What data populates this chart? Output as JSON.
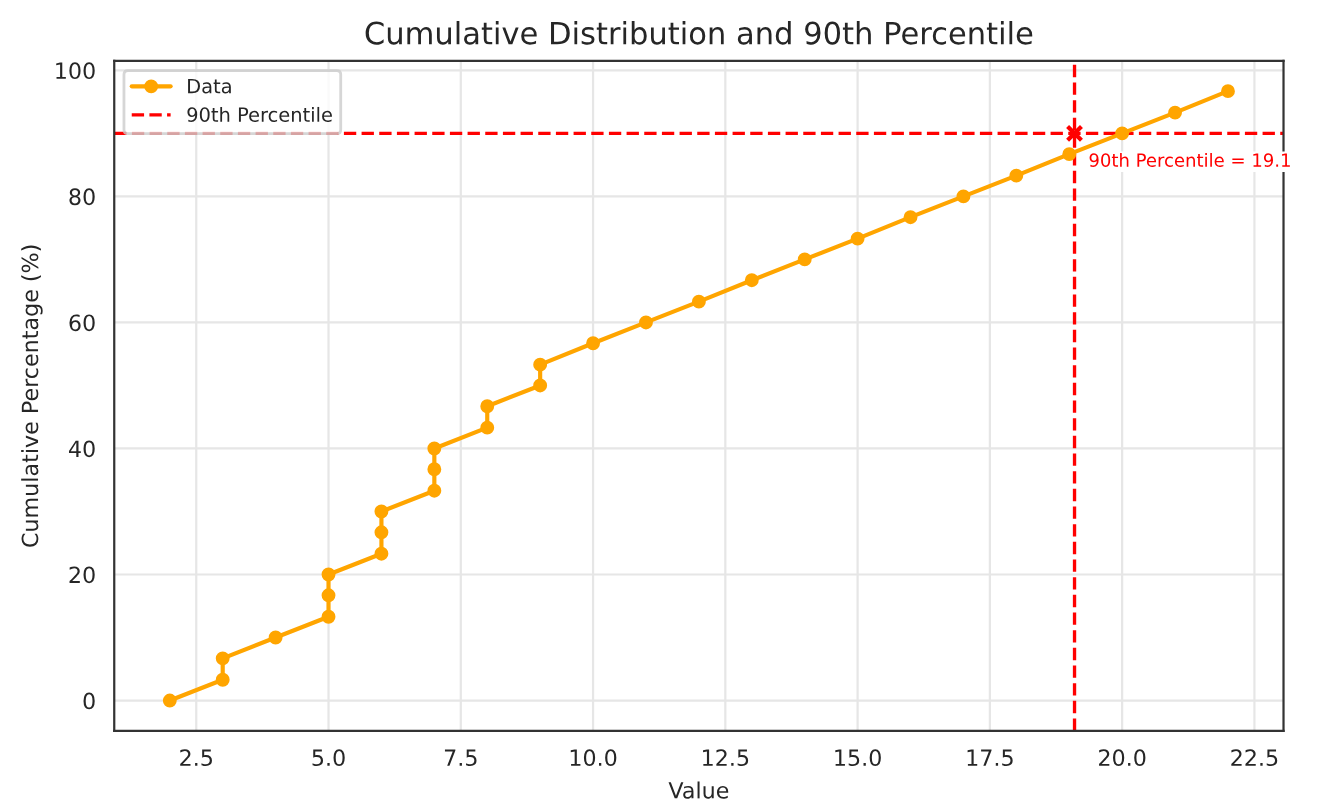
{
  "chart_data": {
    "type": "line",
    "title": "Cumulative Distribution and 90th Percentile",
    "xlabel": "Value",
    "ylabel": "Cumulative Percentage (%)",
    "series": [
      {
        "name": "Data",
        "color": "#ffa500",
        "marker": "circle",
        "x": [
          2,
          3,
          3,
          4,
          5,
          5,
          5,
          6,
          6,
          6,
          7,
          7,
          7,
          8,
          8,
          9,
          9,
          10,
          11,
          12,
          13,
          14,
          15,
          16,
          17,
          18,
          19,
          20,
          21,
          22
        ],
        "values": [
          0,
          3.3,
          6.7,
          10,
          13.3,
          16.7,
          20,
          23.3,
          26.7,
          30,
          33.3,
          36.7,
          40,
          43.3,
          46.7,
          50,
          53.3,
          56.7,
          60,
          63.3,
          66.7,
          70,
          73.3,
          76.7,
          80,
          83.3,
          86.7,
          90,
          93.3,
          96.7
        ]
      },
      {
        "type": "scatter",
        "color": "#ff0000",
        "marker": "cross",
        "x": [
          19.1
        ],
        "values": [
          90
        ]
      }
    ],
    "ref_lines": [
      {
        "axis": "y",
        "value": 90,
        "label": "90th Percentile",
        "color": "#ff0000",
        "line_style": "dashed"
      },
      {
        "axis": "x",
        "value": 19.1,
        "color": "#ff0000",
        "line_style": "dashed"
      }
    ],
    "annotations": [
      {
        "text": "90th Percentile = 19.1",
        "x": 19.1,
        "y": 90
      }
    ],
    "xlim": [
      0.95,
      23.05
    ],
    "ylim": [
      -4.8,
      101.5
    ],
    "xticks": [
      2.5,
      {
        "value": 5,
        "label": "5.0"
      },
      7.5,
      {
        "value": 10,
        "label": "10.0"
      },
      12.5,
      {
        "value": 15,
        "label": "15.0"
      },
      17.5,
      {
        "value": 20,
        "label": "20.0"
      },
      22.5
    ],
    "yticks": [
      0,
      20,
      40,
      60,
      80,
      100
    ],
    "grid": true,
    "legend": "top left"
  }
}
